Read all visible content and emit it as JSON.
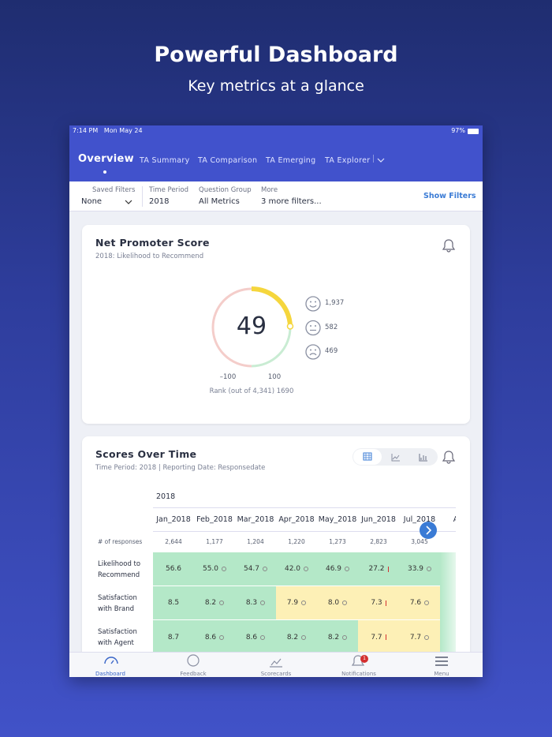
{
  "header": {
    "title": "Powerful Dashboard",
    "subtitle": "Key metrics at a glance"
  },
  "status_bar": {
    "time": "7:14 PM",
    "date": "Mon May 24",
    "battery": "97%"
  },
  "nav": {
    "tabs": [
      "Overview",
      "TA Summary",
      "TA Comparison",
      "TA Emerging",
      "TA Explorer"
    ]
  },
  "filters": {
    "items": [
      {
        "label": "Saved Filters",
        "value": "None"
      },
      {
        "label": "Time Period",
        "value": "2018"
      },
      {
        "label": "Question Group",
        "value": "All Metrics"
      },
      {
        "label": "More",
        "value": "3 more filters..."
      }
    ],
    "action": "Show Filters"
  },
  "nps": {
    "title": "Net Promoter Score",
    "subtitle": "2018: Likelihood to Recommend",
    "score": 49,
    "min": {
      "value": -100,
      "label": "–100"
    },
    "max": 100,
    "counts": [
      "1,937",
      "582",
      "469"
    ],
    "rank": "Rank (out of 4,341) 1690"
  },
  "scores": {
    "title": "Scores Over Time",
    "subtitle": "Time Period: 2018 | Reporting Date: Responsedate",
    "year": "2018",
    "columns": [
      "Jan_2018",
      "Feb_2018",
      "Mar_2018",
      "Apr_2018",
      "May_2018",
      "Jun_2018",
      "Jul_2018",
      "Aug"
    ],
    "responses_label": "# of responses",
    "responses": [
      "2,644",
      "1,177",
      "1,204",
      "1,220",
      "1,273",
      "2,823",
      "3,045"
    ],
    "rows": [
      {
        "label": "Likelihood to Recommend",
        "cells": [
          {
            "text": "56.6",
            "band": "green",
            "trend": "none"
          },
          {
            "text": "55.0",
            "band": "green",
            "trend": "flat"
          },
          {
            "text": "54.7",
            "band": "green",
            "trend": "flat"
          },
          {
            "text": "42.0",
            "band": "green",
            "trend": "flat"
          },
          {
            "text": "46.9",
            "band": "green",
            "trend": "flat"
          },
          {
            "text": "27.2",
            "band": "green",
            "trend": "down"
          },
          {
            "text": "33.9",
            "band": "green",
            "trend": "flat"
          }
        ]
      },
      {
        "label": "Satisfaction with Brand",
        "cells": [
          {
            "text": "8.5",
            "band": "green",
            "trend": "none"
          },
          {
            "text": "8.2",
            "band": "green",
            "trend": "flat"
          },
          {
            "text": "8.3",
            "band": "green",
            "trend": "flat"
          },
          {
            "text": "7.9",
            "band": "yellow",
            "trend": "flat"
          },
          {
            "text": "8.0",
            "band": "yellow",
            "trend": "flat"
          },
          {
            "text": "7.3",
            "band": "yellow",
            "trend": "down"
          },
          {
            "text": "7.6",
            "band": "yellow",
            "trend": "flat"
          }
        ]
      },
      {
        "label": "Satisfaction with Agent",
        "cells": [
          {
            "text": "8.7",
            "band": "green",
            "trend": "none"
          },
          {
            "text": "8.6",
            "band": "green",
            "trend": "flat"
          },
          {
            "text": "8.6",
            "band": "green",
            "trend": "flat"
          },
          {
            "text": "8.2",
            "band": "green",
            "trend": "flat"
          },
          {
            "text": "8.2",
            "band": "green",
            "trend": "flat"
          },
          {
            "text": "7.7",
            "band": "yellow",
            "trend": "down"
          },
          {
            "text": "7.7",
            "band": "yellow",
            "trend": "flat"
          }
        ]
      }
    ]
  },
  "tab_bar": {
    "items": [
      "Dashboard",
      "Feedback",
      "Scorecards",
      "Notifications",
      "Menu"
    ],
    "badge": "1"
  }
}
